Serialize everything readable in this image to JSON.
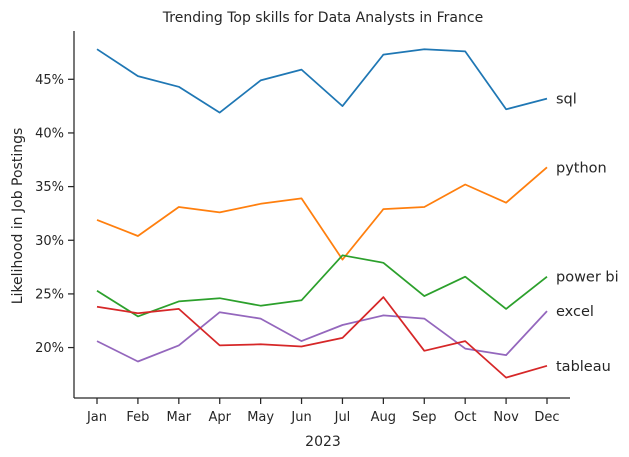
{
  "chart_data": {
    "type": "line",
    "title": "Trending Top skills for Data Analysts in France",
    "xlabel": "2023",
    "ylabel": "Likelihood in Job Postings",
    "categories": [
      "Jan",
      "Feb",
      "Mar",
      "Apr",
      "May",
      "Jun",
      "Jul",
      "Aug",
      "Sep",
      "Oct",
      "Nov",
      "Dec"
    ],
    "y_ticks": [
      20,
      25,
      30,
      35,
      40,
      45
    ],
    "y_tick_format": "%",
    "ylim": [
      15.3,
      49.5
    ],
    "grid": false,
    "legend": "labels at line ends (right)",
    "series": [
      {
        "name": "sql",
        "color": "#1f77b4",
        "values": [
          47.8,
          45.3,
          44.3,
          41.9,
          44.9,
          45.9,
          42.5,
          47.3,
          47.8,
          47.6,
          42.2,
          43.2
        ]
      },
      {
        "name": "python",
        "color": "#ff7f0e",
        "values": [
          31.9,
          30.4,
          33.1,
          32.6,
          33.4,
          33.9,
          28.2,
          32.9,
          33.1,
          35.2,
          33.5,
          36.8
        ]
      },
      {
        "name": "power bi",
        "color": "#2ca02c",
        "values": [
          25.3,
          22.9,
          24.3,
          24.6,
          23.9,
          24.4,
          28.6,
          27.9,
          24.8,
          26.6,
          23.6,
          26.6
        ]
      },
      {
        "name": "excel",
        "color": "#9467bd",
        "values": [
          20.6,
          18.7,
          20.2,
          23.3,
          22.7,
          20.6,
          22.1,
          23.0,
          22.7,
          19.9,
          19.3,
          23.4
        ]
      },
      {
        "name": "tableau",
        "color": "#d62728",
        "values": [
          23.8,
          23.2,
          23.6,
          20.2,
          20.3,
          20.1,
          20.9,
          24.7,
          19.7,
          20.6,
          17.2,
          18.3
        ]
      }
    ]
  }
}
